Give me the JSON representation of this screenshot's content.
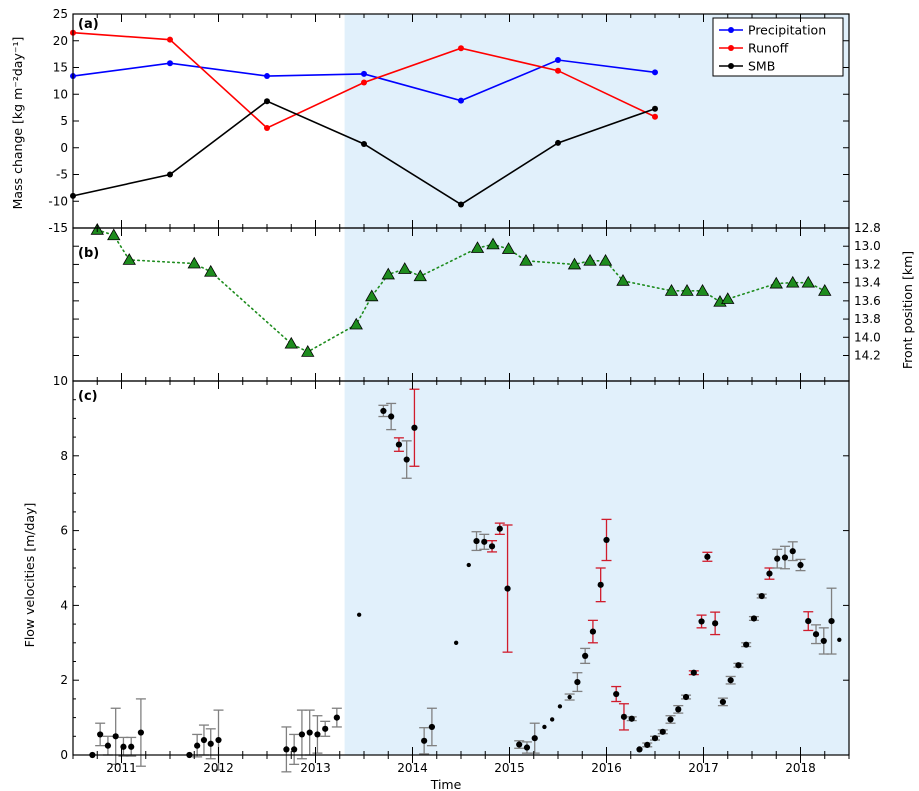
{
  "x_axis": {
    "label": "Time",
    "ticks": [
      "2011",
      "2012",
      "2013",
      "2014",
      "2015",
      "2016",
      "2017",
      "2018"
    ]
  },
  "shading": {
    "start": 2013.3,
    "color": "#e1f0fb"
  },
  "chart_data": [
    {
      "type": "line",
      "panel_label": "(a)",
      "ylabel": "Mass change [kg m⁻²day⁻¹]",
      "ylim": [
        -15,
        25
      ],
      "yticks": [
        -15,
        -10,
        -5,
        0,
        5,
        10,
        15,
        20,
        25
      ],
      "legend_position": "top-right",
      "x": [
        2010.5,
        2011.5,
        2012.5,
        2013.5,
        2014.5,
        2015.5,
        2016.5
      ],
      "series": [
        {
          "name": "Precipitation",
          "color": "#0000ff",
          "values": [
            13.4,
            15.8,
            13.4,
            13.8,
            8.8,
            16.4,
            14.1
          ]
        },
        {
          "name": "Runoff",
          "color": "#ff0000",
          "values": [
            21.5,
            20.2,
            3.7,
            12.2,
            18.6,
            14.4,
            5.8
          ]
        },
        {
          "name": "SMB",
          "color": "#000000",
          "values": [
            -9.0,
            -5.0,
            8.7,
            0.7,
            -10.6,
            0.9,
            7.3
          ]
        }
      ]
    },
    {
      "type": "scatter",
      "panel_label": "(b)",
      "ylabel": "Front position [km]",
      "y_axis_side": "right",
      "inverted": true,
      "ylim": [
        14.48,
        12.8
      ],
      "yticks": [
        12.8,
        13.0,
        13.2,
        13.4,
        13.6,
        13.8,
        14.0,
        14.2
      ],
      "marker": "triangle",
      "marker_color": "#1e8c1e",
      "line_style": "dotted",
      "x": [
        2010.75,
        2010.92,
        2011.08,
        2011.75,
        2011.92,
        2012.75,
        2012.92,
        2013.42,
        2013.58,
        2013.75,
        2013.92,
        2014.08,
        2014.67,
        2014.83,
        2014.99,
        2015.17,
        2015.67,
        2015.83,
        2015.99,
        2016.17,
        2016.67,
        2016.83,
        2016.99,
        2017.17,
        2017.25,
        2017.75,
        2017.92,
        2018.08,
        2018.25
      ],
      "y": [
        12.82,
        12.88,
        13.15,
        13.19,
        13.28,
        14.07,
        14.16,
        13.86,
        13.55,
        13.31,
        13.25,
        13.33,
        13.02,
        12.98,
        13.03,
        13.16,
        13.2,
        13.16,
        13.16,
        13.38,
        13.49,
        13.49,
        13.49,
        13.61,
        13.58,
        13.41,
        13.4,
        13.4,
        13.49
      ]
    },
    {
      "type": "scatter",
      "panel_label": "(c)",
      "ylabel": "Flow velocities [m/day]",
      "ylim": [
        0,
        10
      ],
      "yticks": [
        0,
        2,
        4,
        6,
        8,
        10
      ],
      "errorbar_colors": {
        "gray": "#808080",
        "red": "#d01c2c"
      },
      "x": [
        2010.7,
        2010.78,
        2010.86,
        2010.94,
        2011.02,
        2011.1,
        2011.2,
        2011.7,
        2011.78,
        2011.85,
        2011.92,
        2012.0,
        2012.7,
        2012.78,
        2012.86,
        2012.94,
        2013.02,
        2013.1,
        2013.22,
        2013.45,
        2013.7,
        2013.78,
        2013.86,
        2013.94,
        2014.02,
        2014.12,
        2014.2,
        2014.45,
        2014.58,
        2014.66,
        2014.74,
        2014.82,
        2014.9,
        2014.98,
        2015.1,
        2015.18,
        2015.26,
        2015.36,
        2015.44,
        2015.52,
        2015.62,
        2015.7,
        2015.78,
        2015.86,
        2015.94,
        2016.0,
        2016.1,
        2016.18,
        2016.26,
        2016.34,
        2016.42,
        2016.5,
        2016.58,
        2016.66,
        2016.74,
        2016.82,
        2016.9,
        2016.98,
        2017.04,
        2017.12,
        2017.2,
        2017.28,
        2017.36,
        2017.44,
        2017.52,
        2017.6,
        2017.68,
        2017.76,
        2017.84,
        2017.92,
        2018.0,
        2018.08,
        2018.16,
        2018.24,
        2018.32,
        2018.4
      ],
      "y": [
        0.0,
        0.55,
        0.25,
        0.5,
        0.22,
        0.22,
        0.6,
        0.0,
        0.25,
        0.4,
        0.3,
        0.4,
        0.15,
        0.15,
        0.55,
        0.6,
        0.55,
        0.7,
        1.0,
        3.75,
        9.2,
        9.05,
        8.3,
        7.9,
        8.75,
        0.38,
        0.75,
        3.0,
        5.08,
        5.72,
        5.7,
        5.58,
        6.05,
        4.45,
        0.28,
        0.2,
        0.45,
        0.75,
        0.95,
        1.3,
        1.55,
        1.95,
        2.65,
        3.3,
        4.55,
        5.75,
        1.63,
        1.02,
        0.97,
        0.15,
        0.27,
        0.45,
        0.62,
        0.95,
        1.22,
        1.55,
        2.2,
        3.57,
        5.3,
        3.52,
        1.42,
        2.0,
        2.4,
        2.95,
        3.65,
        4.25,
        4.85,
        5.25,
        5.28,
        5.45,
        5.08,
        3.58,
        3.23,
        3.05,
        3.58,
        3.08
      ],
      "err": [
        0.0,
        0.3,
        0.25,
        0.75,
        0.25,
        0.25,
        0.9,
        0.0,
        0.3,
        0.4,
        0.4,
        0.8,
        0.6,
        0.4,
        0.65,
        0.6,
        0.5,
        0.2,
        0.25,
        0.0,
        0.15,
        0.35,
        0.18,
        0.5,
        1.03,
        0.35,
        0.5,
        0.0,
        0.0,
        0.25,
        0.2,
        0.15,
        0.15,
        1.7,
        0.1,
        0.15,
        0.4,
        0.0,
        0.0,
        0.0,
        0.08,
        0.25,
        0.2,
        0.3,
        0.45,
        0.55,
        0.2,
        0.35,
        0.05,
        0.0,
        0.05,
        0.05,
        0.05,
        0.1,
        0.1,
        0.05,
        0.05,
        0.17,
        0.12,
        0.3,
        0.1,
        0.1,
        0.05,
        0.05,
        0.05,
        0.05,
        0.15,
        0.25,
        0.3,
        0.25,
        0.15,
        0.25,
        0.25,
        0.35,
        0.88,
        0.0
      ],
      "err_color": [
        "gray",
        "gray",
        "gray",
        "gray",
        "gray",
        "gray",
        "gray",
        "gray",
        "gray",
        "gray",
        "gray",
        "gray",
        "gray",
        "gray",
        "gray",
        "gray",
        "gray",
        "gray",
        "gray",
        "gray",
        "gray",
        "gray",
        "red",
        "gray",
        "red",
        "gray",
        "gray",
        "gray",
        "gray",
        "gray",
        "gray",
        "red",
        "red",
        "red",
        "gray",
        "gray",
        "gray",
        "gray",
        "gray",
        "gray",
        "gray",
        "gray",
        "gray",
        "red",
        "red",
        "red",
        "red",
        "red",
        "gray",
        "gray",
        "gray",
        "gray",
        "gray",
        "gray",
        "gray",
        "gray",
        "red",
        "red",
        "red",
        "red",
        "gray",
        "gray",
        "gray",
        "gray",
        "gray",
        "gray",
        "red",
        "gray",
        "gray",
        "gray",
        "gray",
        "red",
        "gray",
        "gray",
        "gray",
        "gray"
      ],
      "marker_size": [
        1,
        1,
        1,
        1,
        1,
        1,
        1,
        1,
        1,
        1,
        1,
        1,
        1,
        1,
        1,
        1,
        1,
        1,
        1,
        0.7,
        1,
        1,
        1,
        1,
        1,
        1,
        1,
        0.7,
        0.7,
        1,
        1,
        1,
        1,
        1,
        1,
        1,
        1,
        0.7,
        0.7,
        0.7,
        0.7,
        1,
        1,
        1,
        1,
        1,
        1,
        1,
        1,
        1,
        1,
        1,
        1,
        1,
        1,
        1,
        1,
        1,
        1,
        1,
        1,
        1,
        1,
        1,
        1,
        1,
        1,
        1,
        1,
        1,
        1,
        1,
        1,
        1,
        1,
        0.7
      ]
    }
  ]
}
